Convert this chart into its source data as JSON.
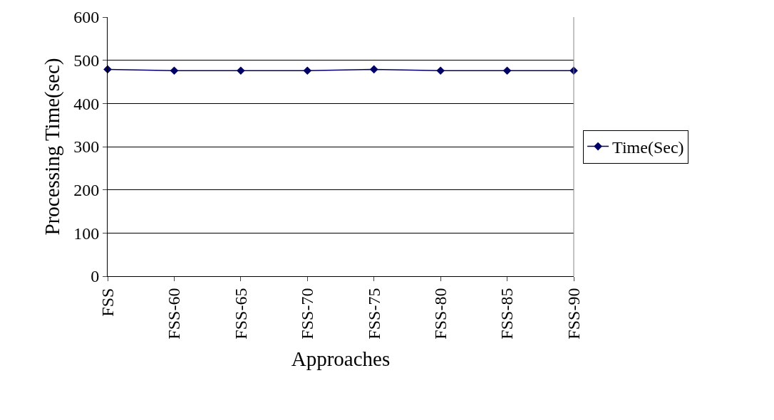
{
  "chart_data": {
    "type": "line",
    "xlabel": "Approaches",
    "ylabel": "Processing Time(sec)",
    "categories": [
      "FSS",
      "FSS-60",
      "FSS-65",
      "FSS-70",
      "FSS-75",
      "FSS-80",
      "FSS-85",
      "FSS-90"
    ],
    "series": [
      {
        "name": "Time(Sec)",
        "color": "#000066",
        "values": [
          479,
          476,
          476,
          476,
          479,
          476,
          476,
          476
        ]
      }
    ],
    "ylim": [
      0,
      600
    ],
    "yticks": [
      0,
      100,
      200,
      300,
      400,
      500,
      600
    ],
    "grid": "y",
    "legend": "right",
    "marker": "diamond",
    "line_style": "solid"
  }
}
